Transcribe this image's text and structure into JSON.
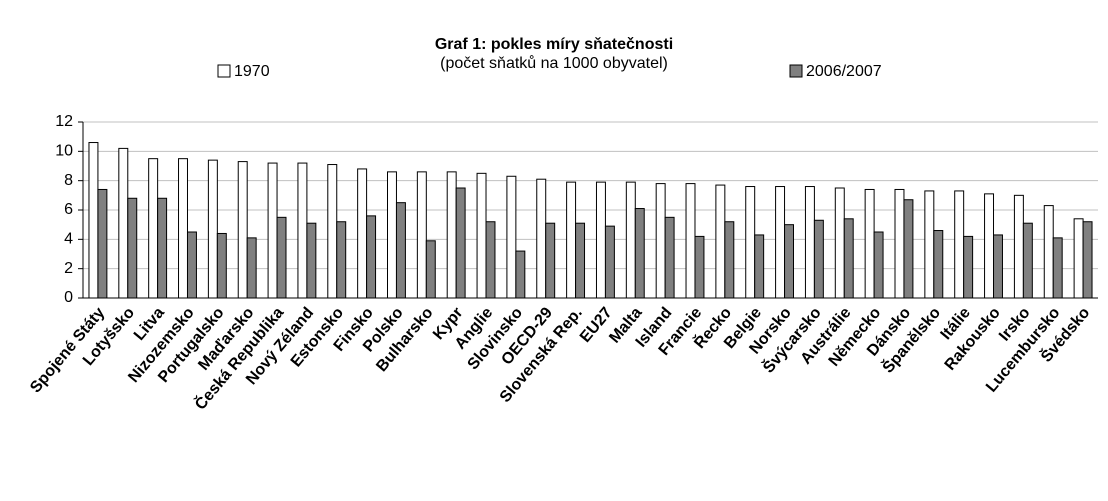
{
  "chart_data": {
    "type": "bar",
    "title": "Graf 1: pokles míry sňatečnosti",
    "subtitle": "(počet sňatků na 1000 obyvatel)",
    "categories": [
      "Spojené Státy",
      "Lotyšsko",
      "Litva",
      "Nizozemsko",
      "Portugalsko",
      "Maďarsko",
      "Česká Republika",
      "Nový Zéland",
      "Estonsko",
      "Finsko",
      "Polsko",
      "Bulharsko",
      "Kypr",
      "Anglie",
      "Slovinsko",
      "OECD-29",
      "Slovenská Rep.",
      "EU27",
      "Malta",
      "Island",
      "Francie",
      "Řecko",
      "Belgie",
      "Norsko",
      "Švýcarsko",
      "Austrálie",
      "Německo",
      "Dánsko",
      "Španělsko",
      "Itálie",
      "Rakousko",
      "Irsko",
      "Lucembursko",
      "Švédsko"
    ],
    "series": [
      {
        "name": "1970",
        "color": "#ffffff",
        "values": [
          10.6,
          10.2,
          9.5,
          9.5,
          9.4,
          9.3,
          9.2,
          9.2,
          9.1,
          8.8,
          8.6,
          8.6,
          8.6,
          8.5,
          8.3,
          8.1,
          7.9,
          7.9,
          7.9,
          7.8,
          7.8,
          7.7,
          7.6,
          7.6,
          7.6,
          7.5,
          7.4,
          7.4,
          7.3,
          7.3,
          7.1,
          7.0,
          6.3,
          5.4
        ]
      },
      {
        "name": "2006/2007",
        "color": "#808080",
        "values": [
          7.4,
          6.8,
          6.8,
          4.5,
          4.4,
          4.1,
          5.5,
          5.1,
          5.2,
          5.6,
          6.5,
          3.9,
          7.5,
          5.2,
          3.2,
          5.1,
          5.1,
          4.9,
          6.1,
          5.5,
          4.2,
          5.2,
          4.3,
          5.0,
          5.3,
          5.4,
          4.5,
          6.7,
          4.6,
          4.2,
          4.3,
          5.1,
          4.1,
          5.2
        ]
      }
    ],
    "ylim": [
      0,
      12
    ],
    "yticks": [
      0,
      2,
      4,
      6,
      8,
      10,
      12
    ],
    "grid": true
  }
}
